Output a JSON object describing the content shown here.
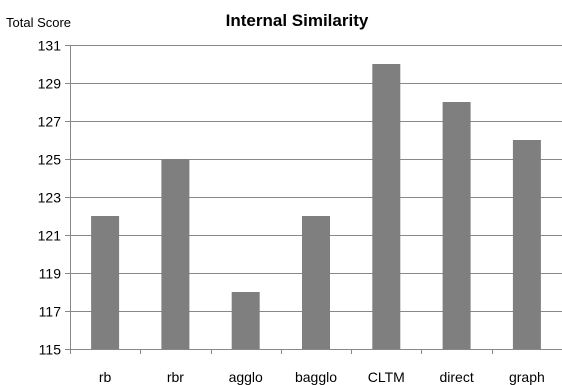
{
  "chart_data": {
    "type": "bar",
    "title": "Internal Similarity",
    "ylabel": "Total Score",
    "xlabel": "",
    "categories": [
      "rb",
      "rbr",
      "agglo",
      "bagglo",
      "CLTM",
      "direct",
      "graph"
    ],
    "values": [
      122,
      125,
      118,
      122,
      130,
      128,
      126
    ],
    "ylim": [
      115,
      131
    ],
    "yticks": [
      "115",
      "117",
      "119",
      "121",
      "123",
      "125",
      "127",
      "129",
      "131"
    ],
    "grid": true,
    "legend": "none",
    "colors": {
      "bar": "#7f7f7f",
      "grid": "#888888",
      "axis": "#888888",
      "text": "#000000"
    }
  }
}
